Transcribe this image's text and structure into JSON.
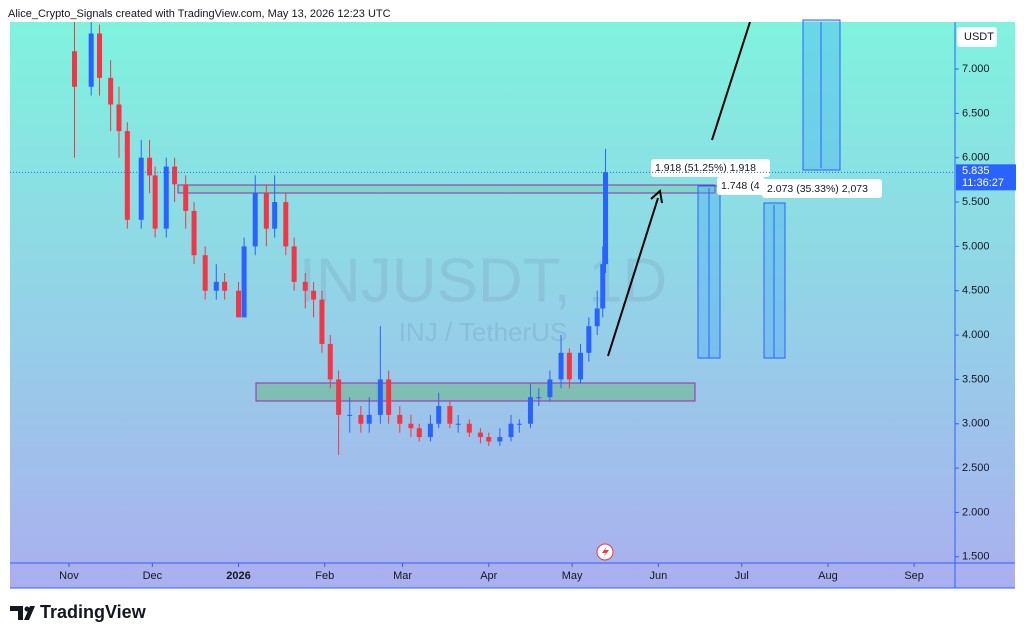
{
  "header": "Alice_Crypto_Signals created with TradingView.com, May 13, 2026 12:23 UTC",
  "footer": "TradingView",
  "chart_data": {
    "type": "candlestick",
    "watermark": [
      "INJUSDT, 1D",
      "INJ / TetherUS"
    ],
    "currency": "USDT",
    "last_price": 5.835,
    "countdown": "11:36:27",
    "annotations": [
      "1.918 (51.25%) 1,918",
      "1.748 (4",
      "2.073 (35.33%) 2,073"
    ],
    "up_color": "#2962ff",
    "down_color": "#f23645",
    "xlim": [
      -21.2,
      318.7
    ],
    "xticks": [
      {
        "value": 0,
        "label": "Nov"
      },
      {
        "value": 30,
        "label": "Dec"
      },
      {
        "value": 61,
        "label": "2026"
      },
      {
        "value": 92,
        "label": "Feb"
      },
      {
        "value": 120,
        "label": "Mar"
      },
      {
        "value": 151,
        "label": "Apr"
      },
      {
        "value": 181,
        "label": "May"
      },
      {
        "value": 212,
        "label": "Jun"
      },
      {
        "value": 242,
        "label": "Jul"
      },
      {
        "value": 273,
        "label": "Aug"
      },
      {
        "value": 304,
        "label": "Sep"
      }
    ],
    "ylim": [
      1.43,
      7.53
    ],
    "yticks": [
      {
        "value": 1.5,
        "label": "1.500"
      },
      {
        "value": 2,
        "label": "2.000"
      },
      {
        "value": 2.5,
        "label": "2.500"
      },
      {
        "value": 3,
        "label": "3.000"
      },
      {
        "value": 3.5,
        "label": "3.500"
      },
      {
        "value": 4,
        "label": "4.000"
      },
      {
        "value": 4.5,
        "label": "4.500"
      },
      {
        "value": 5,
        "label": "5.000"
      },
      {
        "value": 5.5,
        "label": "5.500"
      },
      {
        "value": 6,
        "label": "6.000"
      },
      {
        "value": 6.5,
        "label": "6.500"
      },
      {
        "value": 7,
        "label": "7.000"
      }
    ],
    "x": [
      2,
      8,
      11,
      15,
      18,
      21,
      26,
      29,
      31,
      35,
      38,
      42,
      45,
      49,
      53,
      56,
      61,
      63,
      67,
      71,
      74,
      78,
      81,
      85,
      88,
      91,
      94,
      97,
      101,
      105,
      108,
      112,
      115,
      119,
      123,
      126,
      130,
      133,
      137,
      140,
      144,
      148,
      151,
      155,
      159,
      162,
      166,
      169,
      173,
      177,
      180,
      184,
      187,
      190,
      192,
      193
    ],
    "open": [
      7.2,
      6.8,
      7.4,
      6.9,
      6.6,
      6.3,
      5.3,
      6.0,
      5.8,
      5.2,
      5.9,
      5.7,
      5.4,
      4.9,
      4.5,
      4.6,
      4.5,
      4.2,
      5.0,
      5.6,
      5.2,
      5.5,
      5.0,
      4.6,
      4.5,
      4.4,
      3.9,
      3.5,
      3.1,
      3.1,
      3.0,
      3.1,
      3.5,
      3.1,
      3.0,
      2.95,
      2.85,
      3.0,
      3.2,
      3.0,
      3.0,
      2.9,
      2.85,
      2.8,
      2.85,
      3.0,
      3.0,
      3.3,
      3.3,
      3.5,
      3.8,
      3.5,
      3.8,
      4.1,
      4.3,
      4.8
    ],
    "high": [
      7.6,
      7.6,
      7.5,
      7.1,
      6.8,
      6.4,
      6.2,
      6.2,
      5.9,
      6.0,
      6.0,
      5.8,
      5.5,
      5.0,
      4.8,
      4.7,
      4.6,
      5.1,
      5.8,
      5.7,
      5.8,
      5.6,
      5.1,
      4.7,
      4.6,
      4.5,
      4.0,
      3.6,
      3.3,
      3.2,
      3.3,
      4.1,
      3.6,
      3.2,
      3.1,
      3.0,
      3.1,
      3.35,
      3.25,
      3.1,
      3.05,
      2.95,
      2.9,
      2.95,
      3.1,
      3.05,
      3.45,
      3.4,
      3.6,
      4.0,
      3.85,
      3.9,
      4.2,
      4.5,
      5.0,
      6.1
    ],
    "low": [
      6.0,
      6.7,
      6.7,
      6.3,
      6.0,
      5.2,
      5.2,
      5.6,
      5.1,
      5.1,
      5.5,
      5.2,
      4.8,
      4.4,
      4.4,
      4.4,
      4.2,
      4.2,
      4.9,
      5.0,
      5.1,
      4.9,
      4.5,
      4.3,
      4.2,
      3.8,
      3.4,
      2.65,
      2.9,
      2.9,
      2.9,
      3.0,
      3.0,
      2.9,
      2.85,
      2.8,
      2.8,
      2.95,
      2.95,
      2.9,
      2.85,
      2.78,
      2.75,
      2.75,
      2.8,
      2.9,
      2.95,
      3.2,
      3.25,
      3.4,
      3.4,
      3.45,
      3.7,
      4.0,
      4.2,
      4.7
    ],
    "close": [
      6.8,
      7.4,
      6.9,
      6.6,
      6.3,
      5.3,
      6.0,
      5.8,
      5.2,
      5.9,
      5.7,
      5.4,
      4.9,
      4.5,
      4.6,
      4.5,
      4.2,
      5.0,
      5.6,
      5.2,
      5.5,
      5.0,
      4.6,
      4.5,
      4.4,
      3.9,
      3.5,
      3.1,
      3.1,
      3.0,
      3.1,
      3.5,
      3.1,
      3.0,
      2.95,
      2.85,
      3.0,
      3.2,
      3.0,
      3.0,
      2.9,
      2.85,
      2.8,
      2.85,
      3.0,
      3.0,
      3.3,
      3.3,
      3.5,
      3.8,
      3.5,
      3.8,
      4.1,
      4.3,
      4.8,
      5.835
    ]
  }
}
